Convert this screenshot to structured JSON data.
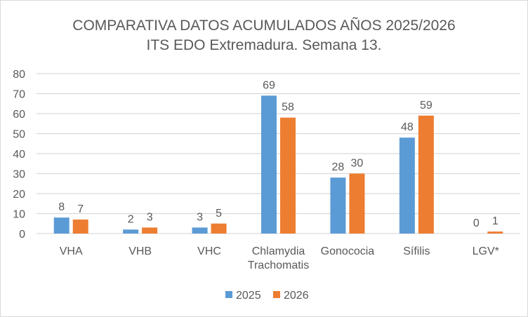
{
  "chart_data": {
    "type": "bar",
    "title": [
      "COMPARATIVA DATOS ACUMULADOS AÑOS 2025/2026",
      "ITS EDO Extremadura. Semana 13."
    ],
    "categories": [
      [
        "VHA"
      ],
      [
        "VHB"
      ],
      [
        "VHC"
      ],
      [
        "Chlamydia",
        "Trachomatis"
      ],
      [
        "Gonococia"
      ],
      [
        "Sífilis"
      ],
      [
        "LGV*"
      ]
    ],
    "series": [
      {
        "name": "2025",
        "color": "#5b9bd5",
        "values": [
          8,
          2,
          3,
          69,
          28,
          48,
          0
        ]
      },
      {
        "name": "2026",
        "color": "#ed7d31",
        "values": [
          7,
          3,
          5,
          58,
          30,
          59,
          1
        ]
      }
    ],
    "ylim": [
      0,
      80
    ],
    "yticks": [
      0,
      10,
      20,
      30,
      40,
      50,
      60,
      70,
      80
    ],
    "grid": true,
    "legend": "bottom",
    "xlabel": "",
    "ylabel": ""
  }
}
